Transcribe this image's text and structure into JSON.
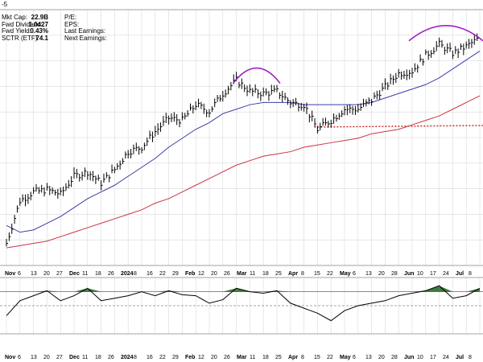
{
  "header": {
    "symbol_fragment": "-5"
  },
  "stats": [
    {
      "label": "Mkt Cap:",
      "value": "22.9B",
      "right": "P/E:"
    },
    {
      "label": "Fwd Dividend:",
      "value": "1.0427",
      "right": "EPS:"
    },
    {
      "label": "Fwd Yield:",
      "value": "0.43%",
      "right": "Last Earnings:"
    },
    {
      "label": "SCTR (ETF):",
      "value": "74.1",
      "right": "Next Earnings:"
    }
  ],
  "colors": {
    "price": "#000000",
    "ma_short": "#3b3ea8",
    "ma_long": "#cc3344",
    "arc": "#a020c8",
    "support": "#cc2222",
    "indicator_fill": "#3e7a3e",
    "grid": "#d9d9d9"
  },
  "chart_data": {
    "type": "line",
    "title": "",
    "x": [
      "Nov 6",
      "Nov 13",
      "Nov 20",
      "Nov 27",
      "Dec 4",
      "Dec 11",
      "Dec 18",
      "Dec 26",
      "2024",
      "Jan 8",
      "Jan 16",
      "Jan 22",
      "Jan 29",
      "Feb 5",
      "Feb 12",
      "Feb 20",
      "Feb 26",
      "Mar 4",
      "Mar 11",
      "Mar 18",
      "Mar 25",
      "Apr 1",
      "Apr 8",
      "Apr 15",
      "Apr 22",
      "Apr 29",
      "May 6",
      "May 13",
      "May 20",
      "May 28",
      "Jun 3",
      "Jun 10",
      "Jun 17",
      "Jun 24",
      "Jul 1",
      "Jul 8"
    ],
    "x_tick_labels": [
      "Nov",
      "6",
      "13",
      "20",
      "27",
      "Dec",
      "11",
      "18",
      "26",
      "2024",
      "8",
      "16",
      "22",
      "29",
      "Feb",
      "12",
      "20",
      "26",
      "Mar",
      "11",
      "18",
      "25",
      "Apr",
      "8",
      "15",
      "22",
      "May",
      "6",
      "13",
      "20",
      "28",
      "Jun",
      "10",
      "17",
      "24",
      "Jul",
      "8"
    ],
    "series": [
      {
        "role": "price",
        "values": [
          0.07,
          0.26,
          0.3,
          0.31,
          0.29,
          0.37,
          0.39,
          0.34,
          0.4,
          0.48,
          0.5,
          0.57,
          0.63,
          0.62,
          0.69,
          0.66,
          0.74,
          0.8,
          0.75,
          0.74,
          0.75,
          0.7,
          0.69,
          0.58,
          0.62,
          0.67,
          0.67,
          0.71,
          0.77,
          0.83,
          0.84,
          0.91,
          0.96,
          0.92,
          0.95,
          0.99
        ]
      },
      {
        "role": "ma_short",
        "values": [
          0.15,
          0.12,
          0.13,
          0.16,
          0.19,
          0.23,
          0.27,
          0.3,
          0.33,
          0.37,
          0.41,
          0.45,
          0.5,
          0.54,
          0.58,
          0.61,
          0.65,
          0.67,
          0.69,
          0.7,
          0.7,
          0.7,
          0.69,
          0.69,
          0.69,
          0.69,
          0.69,
          0.7,
          0.72,
          0.74,
          0.76,
          0.78,
          0.81,
          0.85,
          0.89,
          0.93
        ]
      },
      {
        "role": "ma_long",
        "values": [
          0.05,
          0.06,
          0.07,
          0.08,
          0.1,
          0.12,
          0.14,
          0.16,
          0.18,
          0.2,
          0.22,
          0.25,
          0.27,
          0.3,
          0.33,
          0.36,
          0.39,
          0.42,
          0.44,
          0.46,
          0.47,
          0.48,
          0.5,
          0.51,
          0.52,
          0.53,
          0.54,
          0.56,
          0.57,
          0.58,
          0.6,
          0.62,
          0.64,
          0.67,
          0.7,
          0.73
        ]
      }
    ],
    "indicator": [
      0.3,
      0.6,
      0.7,
      0.8,
      0.6,
      0.7,
      0.85,
      0.6,
      0.65,
      0.7,
      0.78,
      0.7,
      0.8,
      0.72,
      0.7,
      0.55,
      0.62,
      0.85,
      0.78,
      0.75,
      0.8,
      0.55,
      0.45,
      0.35,
      0.2,
      0.4,
      0.5,
      0.55,
      0.6,
      0.7,
      0.75,
      0.8,
      0.9,
      0.65,
      0.7,
      0.85
    ],
    "support_level": 0.59,
    "arcs": [
      {
        "from": "Mar 4",
        "to": "Mar 25"
      },
      {
        "from": "Jun 3",
        "to": "Jul 8"
      }
    ],
    "grid": true,
    "legend": "none"
  }
}
